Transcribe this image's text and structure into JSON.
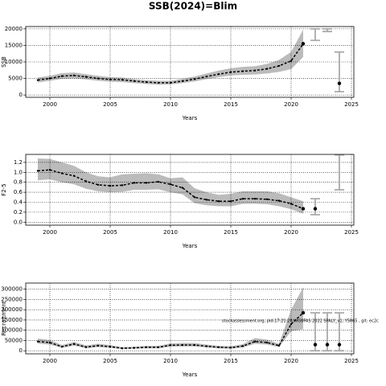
{
  "title": "SSB(2024)=Blim",
  "chart_data": [
    {
      "type": "line",
      "ylabel": "SSB",
      "xlabel": "Years",
      "xlim": [
        1998,
        2025.2
      ],
      "xticks": [
        2000,
        2005,
        2010,
        2015,
        2020,
        2025
      ],
      "ylim": [
        -700,
        20700
      ],
      "yticks": [
        0,
        5000,
        10000,
        15000,
        20000
      ],
      "grid": true,
      "color": "#000000",
      "band_color": "#bbbbbb",
      "interval_color": "#aaaaaa",
      "x": [
        1999,
        2000,
        2001,
        2002,
        2003,
        2004,
        2005,
        2006,
        2007,
        2008,
        2009,
        2010,
        2011,
        2012,
        2013,
        2014,
        2015,
        2016,
        2017,
        2018,
        2019,
        2020,
        2021
      ],
      "values": [
        4500,
        5000,
        5700,
        5900,
        5500,
        5000,
        4700,
        4600,
        4200,
        3900,
        3700,
        3700,
        4200,
        4800,
        5600,
        6300,
        6900,
        7200,
        7400,
        7900,
        8800,
        10300,
        15500
      ],
      "low": [
        3800,
        4300,
        4900,
        5000,
        4700,
        4300,
        4000,
        3900,
        3600,
        3300,
        3100,
        3200,
        3600,
        4100,
        4800,
        5400,
        5900,
        6100,
        6200,
        6500,
        7000,
        7800,
        11500
      ],
      "high": [
        5300,
        5800,
        6600,
        6800,
        6300,
        5800,
        5400,
        5300,
        4800,
        4500,
        4300,
        4300,
        4900,
        5600,
        6500,
        7400,
        8100,
        8500,
        8700,
        9400,
        10600,
        13000,
        19800
      ],
      "projection": {
        "x": [
          2022,
          2023,
          2024
        ],
        "values": [
          null,
          null,
          3500
        ],
        "low": [
          16500,
          19200,
          1000
        ],
        "high": [
          20000,
          20000,
          13000
        ]
      }
    },
    {
      "type": "line",
      "ylabel": "F2-5",
      "xlabel": "Years",
      "xlim": [
        1998,
        2025.2
      ],
      "xticks": [
        2000,
        2005,
        2010,
        2015,
        2020,
        2025
      ],
      "ylim": [
        -0.06,
        1.36
      ],
      "yticks": [
        {
          "value": 0,
          "label": "0.0"
        },
        0.2,
        0.4,
        0.6,
        0.8,
        {
          "value": 1,
          "label": "1.0"
        },
        1.2
      ],
      "grid": true,
      "color": "#000000",
      "band_color": "#bbbbbb",
      "interval_color": "#aaaaaa",
      "x": [
        1999,
        2000,
        2001,
        2002,
        2003,
        2004,
        2005,
        2006,
        2007,
        2008,
        2009,
        2010,
        2011,
        2012,
        2013,
        2014,
        2015,
        2016,
        2017,
        2018,
        2019,
        2020,
        2021
      ],
      "values": [
        1.03,
        1.05,
        0.98,
        0.93,
        0.82,
        0.75,
        0.73,
        0.74,
        0.79,
        0.79,
        0.81,
        0.76,
        0.69,
        0.5,
        0.45,
        0.42,
        0.42,
        0.47,
        0.47,
        0.46,
        0.43,
        0.37,
        0.27
      ],
      "low": [
        0.84,
        0.86,
        0.8,
        0.76,
        0.67,
        0.62,
        0.6,
        0.61,
        0.65,
        0.65,
        0.66,
        0.6,
        0.56,
        0.38,
        0.34,
        0.32,
        0.32,
        0.37,
        0.37,
        0.36,
        0.32,
        0.26,
        0.17
      ],
      "high": [
        1.28,
        1.27,
        1.2,
        1.13,
        1.0,
        0.92,
        0.9,
        0.96,
        0.97,
        0.98,
        0.96,
        0.88,
        0.9,
        0.68,
        0.6,
        0.55,
        0.57,
        0.62,
        0.62,
        0.62,
        0.58,
        0.5,
        0.42
      ],
      "projection": {
        "x": [
          2022,
          2024
        ],
        "values": [
          0.27,
          null
        ],
        "low": [
          0.15,
          0.65
        ],
        "high": [
          0.47,
          1.35
        ]
      }
    },
    {
      "type": "line",
      "ylabel": "Recruitment",
      "xlabel": "Years",
      "annotation": "stockassessment.org, pid:17:21:28,WGBFAS 2022 SPALY_v1, Y5865 , git: ec2c",
      "xlim": [
        1998,
        2025.2
      ],
      "xticks": [
        2000,
        2005,
        2010,
        2015,
        2020,
        2025
      ],
      "ylim": [
        -15000,
        330000
      ],
      "yticks": [
        0,
        50000,
        100000,
        150000,
        200000,
        250000,
        300000
      ],
      "grid": true,
      "color": "#000000",
      "band_color": "#bbbbbb",
      "interval_color": "#aaaaaa",
      "x": [
        1999,
        2000,
        2001,
        2002,
        2003,
        2004,
        2005,
        2006,
        2007,
        2008,
        2009,
        2010,
        2011,
        2012,
        2013,
        2014,
        2015,
        2016,
        2017,
        2018,
        2019,
        2020,
        2021
      ],
      "values": [
        45000,
        40000,
        20000,
        33000,
        18000,
        25000,
        20000,
        12000,
        14000,
        17000,
        17000,
        27000,
        28000,
        28000,
        22000,
        17000,
        15000,
        23000,
        45000,
        40000,
        25000,
        130000,
        185000
      ],
      "low": [
        35000,
        30000,
        14000,
        25000,
        12000,
        18000,
        14000,
        8000,
        10000,
        12000,
        12000,
        20000,
        21000,
        21000,
        16000,
        12000,
        10000,
        16000,
        34000,
        30000,
        18000,
        95000,
        105000
      ],
      "high": [
        60000,
        52000,
        28000,
        43000,
        26000,
        34000,
        28000,
        18000,
        20000,
        24000,
        24000,
        36000,
        38000,
        38000,
        30000,
        24000,
        22000,
        32000,
        62000,
        54000,
        34000,
        200000,
        310000
      ],
      "projection": {
        "x": [
          2022,
          2023,
          2024
        ],
        "values": [
          30000,
          30000,
          30000
        ],
        "low": [
          0,
          0,
          0
        ],
        "high": [
          185000,
          185000,
          185000
        ]
      }
    }
  ]
}
